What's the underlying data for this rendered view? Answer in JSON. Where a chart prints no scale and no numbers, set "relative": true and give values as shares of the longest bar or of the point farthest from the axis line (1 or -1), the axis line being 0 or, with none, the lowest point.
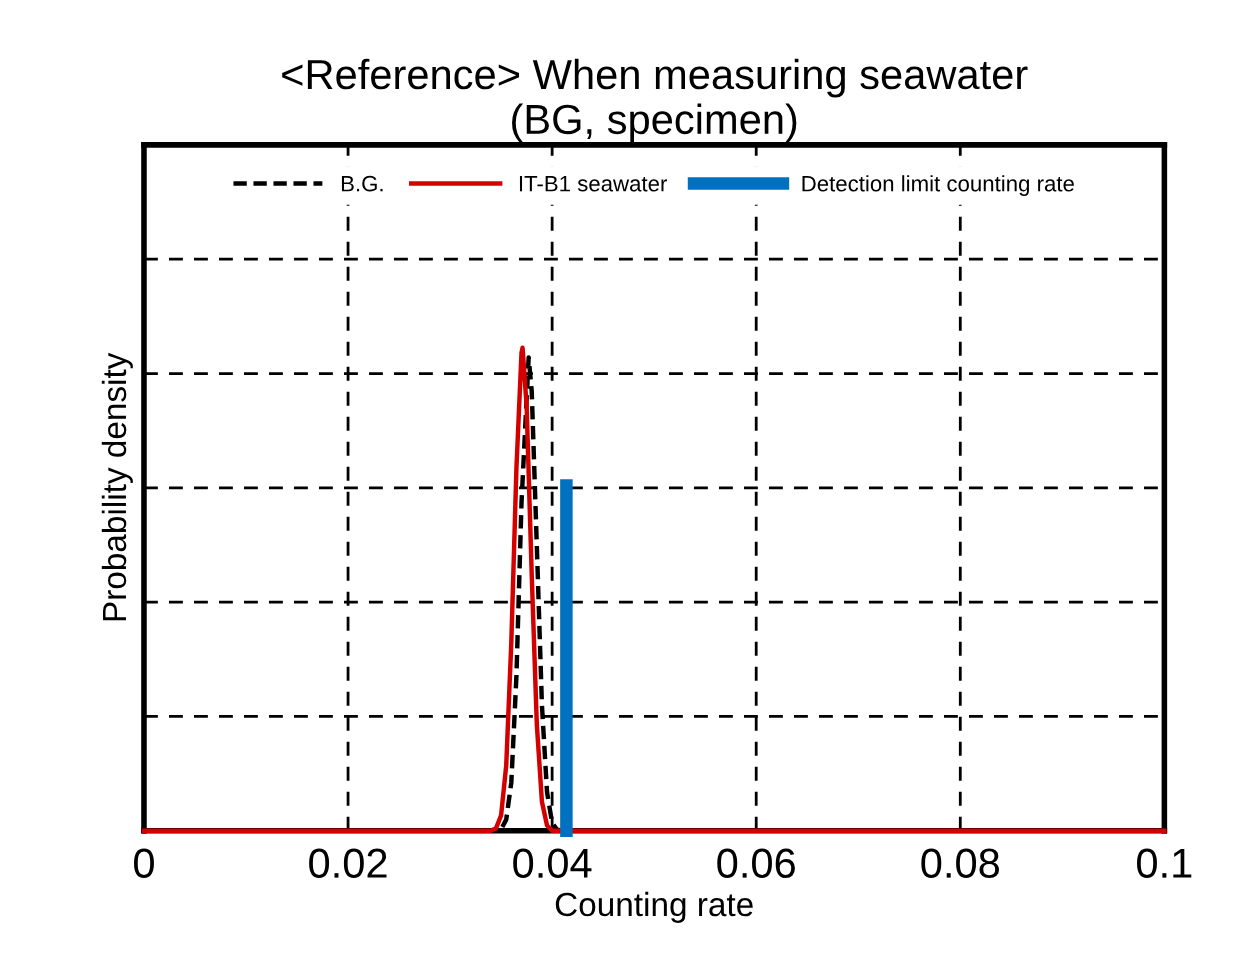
{
  "chart_data": {
    "type": "line",
    "title": "<Reference> When measuring seawater\n(BG, specimen)",
    "xlabel": "Counting rate",
    "ylabel": "Probability density",
    "relative": true,
    "xlim": [
      0,
      0.1
    ],
    "xticks": [
      0,
      0.02,
      0.04,
      0.06,
      0.08,
      0.1
    ],
    "grid": true,
    "legend": "top",
    "tick_labels": "x",
    "series": [
      {
        "name": "B.G.",
        "color": "#000000",
        "line_style": "dashed",
        "x": [
          0,
          0.0345,
          0.035,
          0.0355,
          0.036,
          0.0365,
          0.037,
          0.0377,
          0.038,
          0.0385,
          0.039,
          0.0395,
          0.04,
          0.0405,
          0.041,
          0.1
        ],
        "values": [
          0,
          0,
          0.003,
          0.023,
          0.1,
          0.32,
          0.68,
          0.98,
          0.91,
          0.59,
          0.26,
          0.08,
          0.016,
          0.002,
          0,
          0
        ]
      },
      {
        "name": "IT-B1 seawater",
        "color": "#d40000",
        "line_style": "solid",
        "x": [
          0,
          0.0335,
          0.034,
          0.0345,
          0.035,
          0.0355,
          0.036,
          0.0365,
          0.037,
          0.0371,
          0.0375,
          0.038,
          0.0385,
          0.039,
          0.0395,
          0.04,
          0.1
        ],
        "values": [
          0,
          0,
          0,
          0.005,
          0.032,
          0.135,
          0.39,
          0.75,
          0.99,
          1,
          0.88,
          0.53,
          0.22,
          0.06,
          0.011,
          0,
          0
        ]
      },
      {
        "name": "Detection limit counting rate",
        "color": "#0070c0",
        "line_style": "solid",
        "x": [
          0.0414,
          0.0414
        ],
        "values": [
          0,
          0.715
        ]
      }
    ]
  }
}
